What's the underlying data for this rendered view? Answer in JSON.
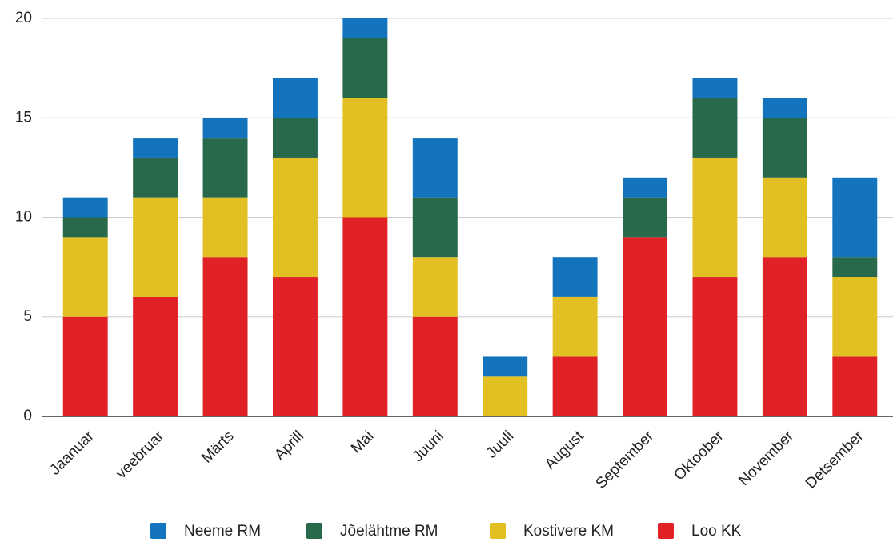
{
  "chart_data": {
    "type": "bar",
    "stacked": true,
    "categories": [
      "Jaanuar",
      "veebruar",
      "Märts",
      "Aprill",
      "Mai",
      "Juuni",
      "Juuli",
      "August",
      "September",
      "Oktoober",
      "November",
      "Detsember"
    ],
    "series": [
      {
        "name": "Neeme RM",
        "color": "#1373bd",
        "values": [
          1,
          1,
          1,
          2,
          1,
          3,
          1,
          2,
          1,
          1,
          1,
          4
        ]
      },
      {
        "name": "Jõelähtme RM",
        "color": "#27694a",
        "values": [
          1,
          2,
          3,
          2,
          3,
          3,
          0,
          0,
          2,
          3,
          3,
          1
        ]
      },
      {
        "name": "Kostivere KM",
        "color": "#e2bf22",
        "values": [
          4,
          5,
          3,
          6,
          6,
          3,
          2,
          3,
          0,
          6,
          4,
          4
        ]
      },
      {
        "name": "Loo KK",
        "color": "#e02227",
        "values": [
          5,
          6,
          8,
          7,
          10,
          5,
          0,
          3,
          9,
          7,
          8,
          3
        ]
      }
    ],
    "ylim": [
      0,
      20
    ],
    "yticks": [
      0,
      5,
      10,
      15,
      20
    ],
    "grid": true,
    "legend": "bottom"
  }
}
